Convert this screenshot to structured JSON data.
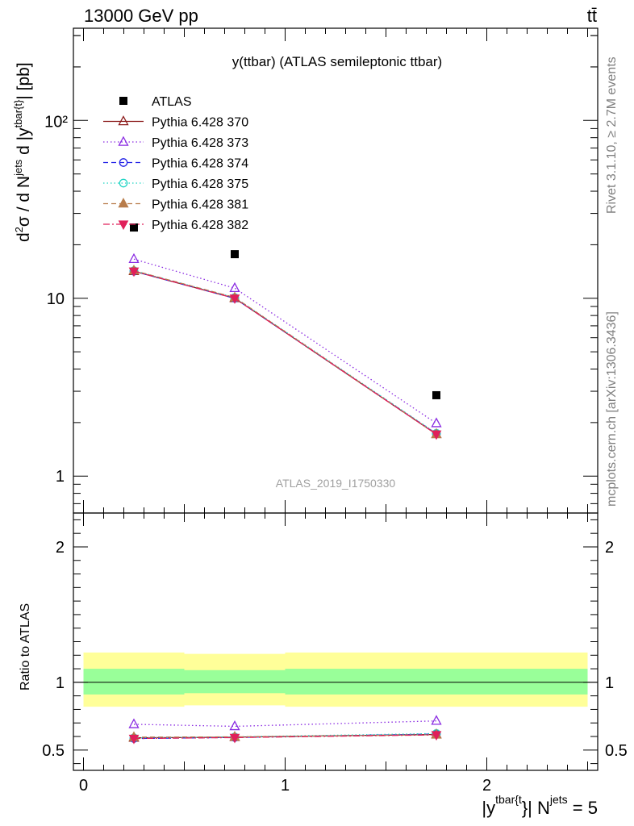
{
  "header": {
    "energy_label": "13000 GeV pp",
    "process_label": "tt̄"
  },
  "side_labels": {
    "rivet": "Rivet 3.1.10, ≥ 2.7M events",
    "mcplots": "mcplots.cern.ch [arXiv:1306.3436]"
  },
  "chart_data": [
    {
      "type": "scatter",
      "title": "y(ttbar) (ATLAS semileptonic ttbar)",
      "watermark": "ATLAS_2019_I1750330",
      "ylabel": "d²σ / d N^jets d |y^tbar{t}| [pb]",
      "xlabel": "|y^tbar{t}| N^jets = 5",
      "yscale": "log",
      "ylim": [
        0.62,
        330
      ],
      "xlim": [
        -0.05,
        2.55
      ],
      "ytick_labels": [
        "1",
        "10",
        "10²"
      ],
      "xtick_labels": [
        "0",
        "1",
        "2"
      ],
      "legend_position": "top-left",
      "x": [
        0.25,
        0.75,
        1.75
      ],
      "series": [
        {
          "name": "ATLAS",
          "values": [
            25.0,
            17.7,
            2.85
          ],
          "color": "#000000",
          "marker": "square-filled",
          "line": "none"
        },
        {
          "name": "Pythia 6.428 370",
          "values": [
            14.2,
            10.0,
            1.72
          ],
          "color": "#8b1a1a",
          "marker": "triangle-open",
          "line": "solid"
        },
        {
          "name": "Pythia 6.428 373",
          "values": [
            16.6,
            11.4,
            1.98
          ],
          "color": "#8a2be2",
          "marker": "triangle-open",
          "line": "dotted"
        },
        {
          "name": "Pythia 6.428 374",
          "values": [
            14.2,
            10.0,
            1.73
          ],
          "color": "#1e1ee6",
          "marker": "circle-open",
          "line": "dashed"
        },
        {
          "name": "Pythia 6.428 375",
          "values": [
            14.3,
            10.1,
            1.74
          ],
          "color": "#20d4c4",
          "marker": "circle-open",
          "line": "dotted"
        },
        {
          "name": "Pythia 6.428 381",
          "values": [
            14.3,
            10.1,
            1.72
          ],
          "color": "#b87c4a",
          "marker": "triangle-filled",
          "line": "dashed"
        },
        {
          "name": "Pythia 6.428 382",
          "values": [
            14.2,
            10.0,
            1.72
          ],
          "color": "#e0205a",
          "marker": "triangle-down-filled",
          "line": "dashdot"
        }
      ]
    },
    {
      "type": "scatter",
      "ylabel": "Ratio to ATLAS",
      "ylim": [
        0.35,
        2.25
      ],
      "ytick_labels": [
        "0.5",
        "1",
        "2"
      ],
      "reference_line": 1.0,
      "bands": {
        "x_edges": [
          0.0,
          0.5,
          1.0,
          2.5
        ],
        "yellow": [
          [
            0.82,
            1.22
          ],
          [
            0.83,
            1.21
          ],
          [
            0.82,
            1.22
          ]
        ],
        "green": [
          [
            0.91,
            1.1
          ],
          [
            0.92,
            1.09
          ],
          [
            0.91,
            1.1
          ]
        ],
        "yellow_color": "#ffff99",
        "green_color": "#99ff99"
      },
      "x": [
        0.25,
        0.75,
        1.75
      ],
      "series": [
        {
          "name": "Pythia 6.428 370",
          "values": [
            0.59,
            0.595,
            0.615
          ]
        },
        {
          "name": "Pythia 6.428 373",
          "values": [
            0.69,
            0.675,
            0.715
          ]
        },
        {
          "name": "Pythia 6.428 374",
          "values": [
            0.585,
            0.593,
            0.618
          ]
        },
        {
          "name": "Pythia 6.428 375",
          "values": [
            0.59,
            0.597,
            0.622
          ]
        },
        {
          "name": "Pythia 6.428 381",
          "values": [
            0.595,
            0.597,
            0.613
          ]
        },
        {
          "name": "Pythia 6.428 382",
          "values": [
            0.585,
            0.592,
            0.612
          ]
        }
      ]
    }
  ]
}
